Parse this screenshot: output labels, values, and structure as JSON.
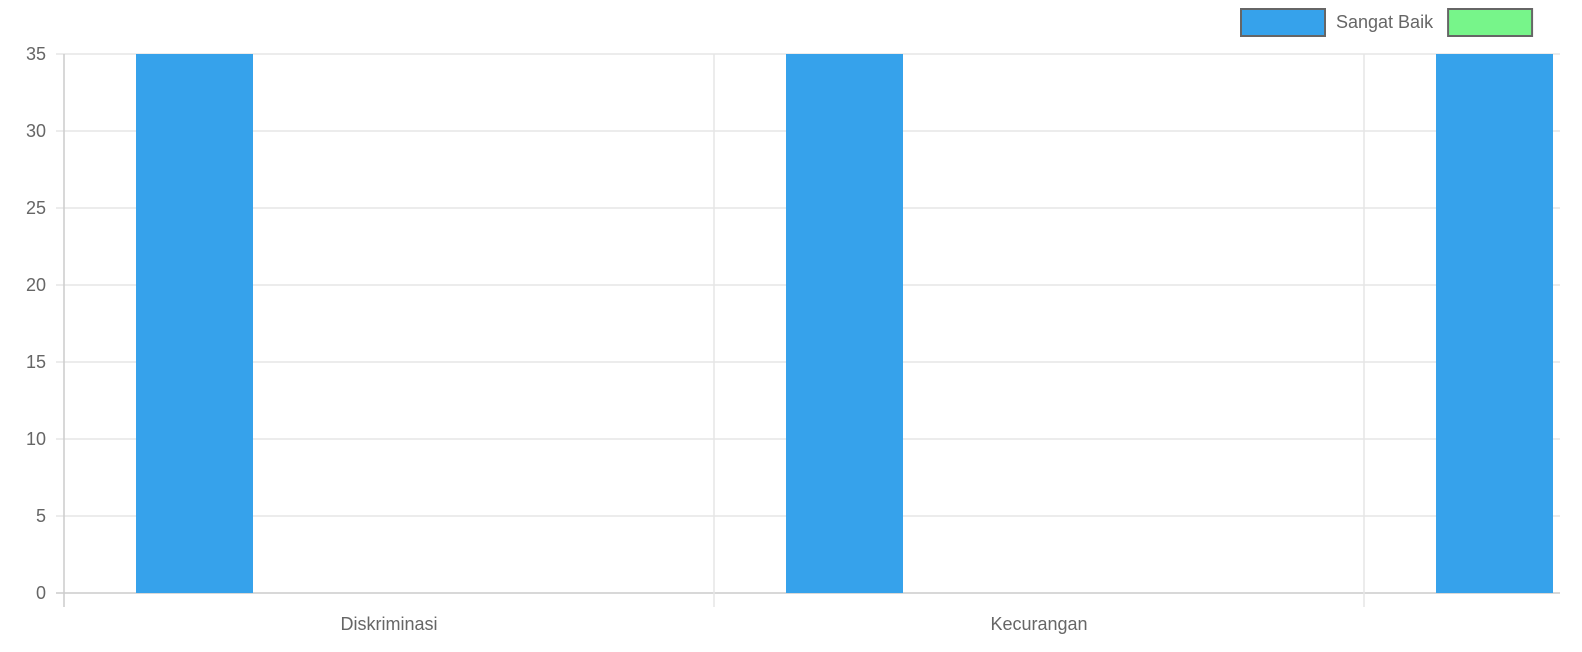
{
  "chart_data": {
    "type": "bar",
    "categories": [
      "Diskriminasi",
      "Kecurangan",
      ""
    ],
    "series": [
      {
        "name": "Sangat Baik",
        "color": "#36a2eb",
        "values": [
          35,
          35,
          35
        ]
      },
      {
        "name": "",
        "color": "#77f58a",
        "values": [
          0,
          0,
          0
        ]
      }
    ],
    "ylim": [
      0,
      35
    ],
    "yticks": [
      0,
      5,
      10,
      15,
      20,
      25,
      30,
      35
    ],
    "grid": true,
    "legend_position": "top-right",
    "title": "",
    "xlabel": "",
    "ylabel": ""
  },
  "colors": {
    "grid": "#e5e5e5",
    "axis": "#cccccc",
    "text": "#666666",
    "legend_border": "#666666"
  }
}
